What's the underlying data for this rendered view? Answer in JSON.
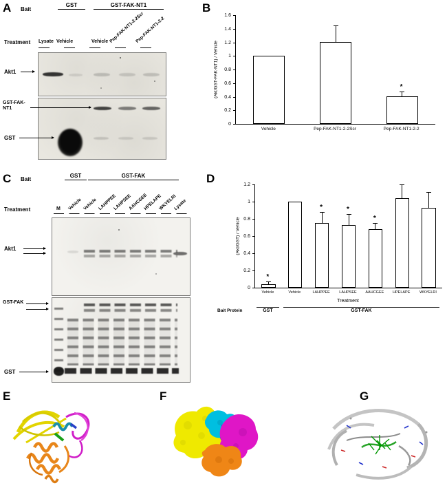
{
  "panels": {
    "A": {
      "letter": "A",
      "bait_label": "Bait",
      "bait_groups": [
        "GST",
        "GST-FAK-NT1"
      ],
      "treatment_label": "Treatment",
      "lanes": [
        "Lysate",
        "Vehicle",
        "Vehicle",
        "Pep-FAK-NT1-2-2Scr",
        "Pep-FAK-NT1-2-2"
      ],
      "band_labels": {
        "akt1": "Akt1",
        "gst_fak_nt1": "GST-FAK-NT1",
        "gst": "GST"
      }
    },
    "B": {
      "letter": "B"
    },
    "C": {
      "letter": "C",
      "bait_label": "Bait",
      "bait_groups": [
        "GST",
        "GST-FAK"
      ],
      "treatment_label": "Treatment",
      "marker_lane": "M",
      "lanes": [
        "Vehicle",
        "Vehicle",
        "LAHPPEE",
        "LAHPSEE",
        "AAHCGEE",
        "HPELAPE",
        "WKYELRI",
        "Lysate"
      ],
      "band_labels": {
        "akt1": "Akt1",
        "gst_fak": "GST-FAK",
        "gst": "GST"
      }
    },
    "D": {
      "letter": "D"
    },
    "E": {
      "letter": "E"
    },
    "F": {
      "letter": "F"
    },
    "G": {
      "letter": "G"
    }
  },
  "chart_data": [
    {
      "panel": "B",
      "type": "bar",
      "categories": [
        "Vehicle",
        "Pep-FAK-NT1-2-2Scr",
        "Pep-FAK-NT1-2-2"
      ],
      "values": [
        1.0,
        1.21,
        0.41
      ],
      "errors": [
        0,
        0.24,
        0.07
      ],
      "significance": [
        false,
        false,
        true
      ],
      "sig_marker": "*",
      "ylabel": "(Akt/GST-FAK-NT1) / Vehicle",
      "xlabel": "",
      "ylim": [
        0,
        1.6
      ],
      "ytick_step": 0.2,
      "bar_fill": "#ffffff",
      "bar_border": "#000000",
      "grid": false,
      "legend": false
    },
    {
      "panel": "D",
      "type": "bar",
      "categories": [
        "Vehicle",
        "Vehicle",
        "LAHPPEE",
        "LAHPSEE",
        "AAHCGEE",
        "HPELAPE",
        "WKYELRI"
      ],
      "values": [
        0.04,
        1.0,
        0.75,
        0.73,
        0.68,
        1.04,
        0.93
      ],
      "errors": [
        0.03,
        0,
        0.13,
        0.13,
        0.07,
        0.16,
        0.18
      ],
      "significance": [
        true,
        false,
        true,
        true,
        true,
        false,
        false
      ],
      "sig_marker": "*",
      "ylabel": "(Akt/GST) / Vehicle",
      "xlabel": "Treatment",
      "bait_row_label": "Bait Protein",
      "bait_groups": [
        {
          "label": "GST",
          "span": 1
        },
        {
          "label": "GST-FAK",
          "span": 6
        }
      ],
      "ylim": [
        0,
        1.2
      ],
      "ytick_step": 0.2,
      "bar_fill": "#ffffff",
      "bar_border": "#000000",
      "grid": false,
      "legend": false
    }
  ],
  "colors": {
    "structure_E": {
      "yellow": "#e2d400",
      "magenta": "#d01ec8",
      "cyan": "#1a8fa8",
      "green": "#18a018",
      "orange": "#e8861a"
    },
    "structure_F": {
      "yellow": "#efe900",
      "magenta": "#df16c6",
      "cyan": "#00bfe0",
      "blue": "#2336d6",
      "orange": "#ef8616"
    },
    "structure_G": {
      "gray": "#c4c4c4",
      "green": "#009800",
      "blue": "#2233cc",
      "red": "#cc2222"
    }
  }
}
